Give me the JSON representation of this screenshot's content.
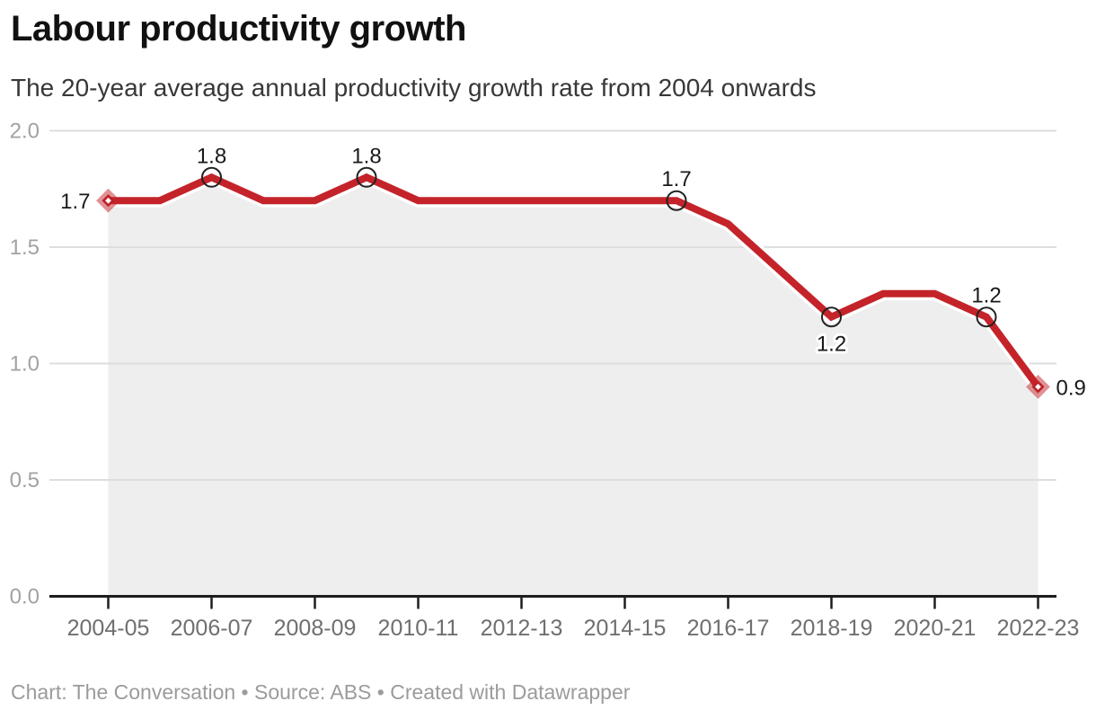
{
  "header": {
    "title": "Labour productivity growth",
    "subtitle": "The 20-year average annual productivity growth rate from 2004 onwards"
  },
  "footer": {
    "text": "Chart: The Conversation • Source: ABS • Created with Datawrapper"
  },
  "chart_data": {
    "type": "area",
    "title": "Labour productivity growth",
    "subtitle": "The 20-year average annual productivity growth rate from 2004 onwards",
    "source_line": "Chart: The Conversation • Source: ABS • Created with Datawrapper",
    "x": [
      "2004-05",
      "2005-06",
      "2006-07",
      "2007-08",
      "2008-09",
      "2009-10",
      "2010-11",
      "2011-12",
      "2012-13",
      "2013-14",
      "2014-15",
      "2015-16",
      "2016-17",
      "2017-18",
      "2018-19",
      "2019-20",
      "2020-21",
      "2021-22",
      "2022-23"
    ],
    "values": [
      1.7,
      1.7,
      1.8,
      1.7,
      1.7,
      1.8,
      1.7,
      1.7,
      1.7,
      1.7,
      1.7,
      1.7,
      1.6,
      1.4,
      1.2,
      1.3,
      1.3,
      1.2,
      0.9
    ],
    "ylim": [
      0.0,
      2.0
    ],
    "grid": true,
    "legend": false,
    "y_tick_labels": [
      "0.0",
      "0.5",
      "1.0",
      "1.5",
      "2.0"
    ],
    "x_tick_labels": [
      "2004-05",
      "2006-07",
      "2008-09",
      "2010-11",
      "2012-13",
      "2014-15",
      "2016-17",
      "2018-19",
      "2020-21",
      "2022-23"
    ],
    "annotations": [
      {
        "year": "2004-05",
        "label": "1.7",
        "marker": "diamond",
        "label_position": "left"
      },
      {
        "year": "2006-07",
        "label": "1.8",
        "marker": "circle",
        "label_position": "above"
      },
      {
        "year": "2009-10",
        "label": "1.8",
        "marker": "circle",
        "label_position": "above"
      },
      {
        "year": "2015-16",
        "label": "1.7",
        "marker": "circle",
        "label_position": "above"
      },
      {
        "year": "2018-19",
        "label": "1.2",
        "marker": "circle",
        "label_position": "below"
      },
      {
        "year": "2021-22",
        "label": "1.2",
        "marker": "circle",
        "label_position": "above"
      },
      {
        "year": "2022-23",
        "label": "0.9",
        "marker": "diamond",
        "label_position": "right"
      }
    ],
    "colors": {
      "line": "#c4232a",
      "diamond_inner": "#bb2027",
      "area_fill": "#eeeeee",
      "grid": "#dedede",
      "axis": "#1d1d1d",
      "x_label": "#6f6f6f",
      "y_label": "#a2a2a2",
      "data_label": "#1a1a1a",
      "marker_ring": "#222222"
    }
  }
}
